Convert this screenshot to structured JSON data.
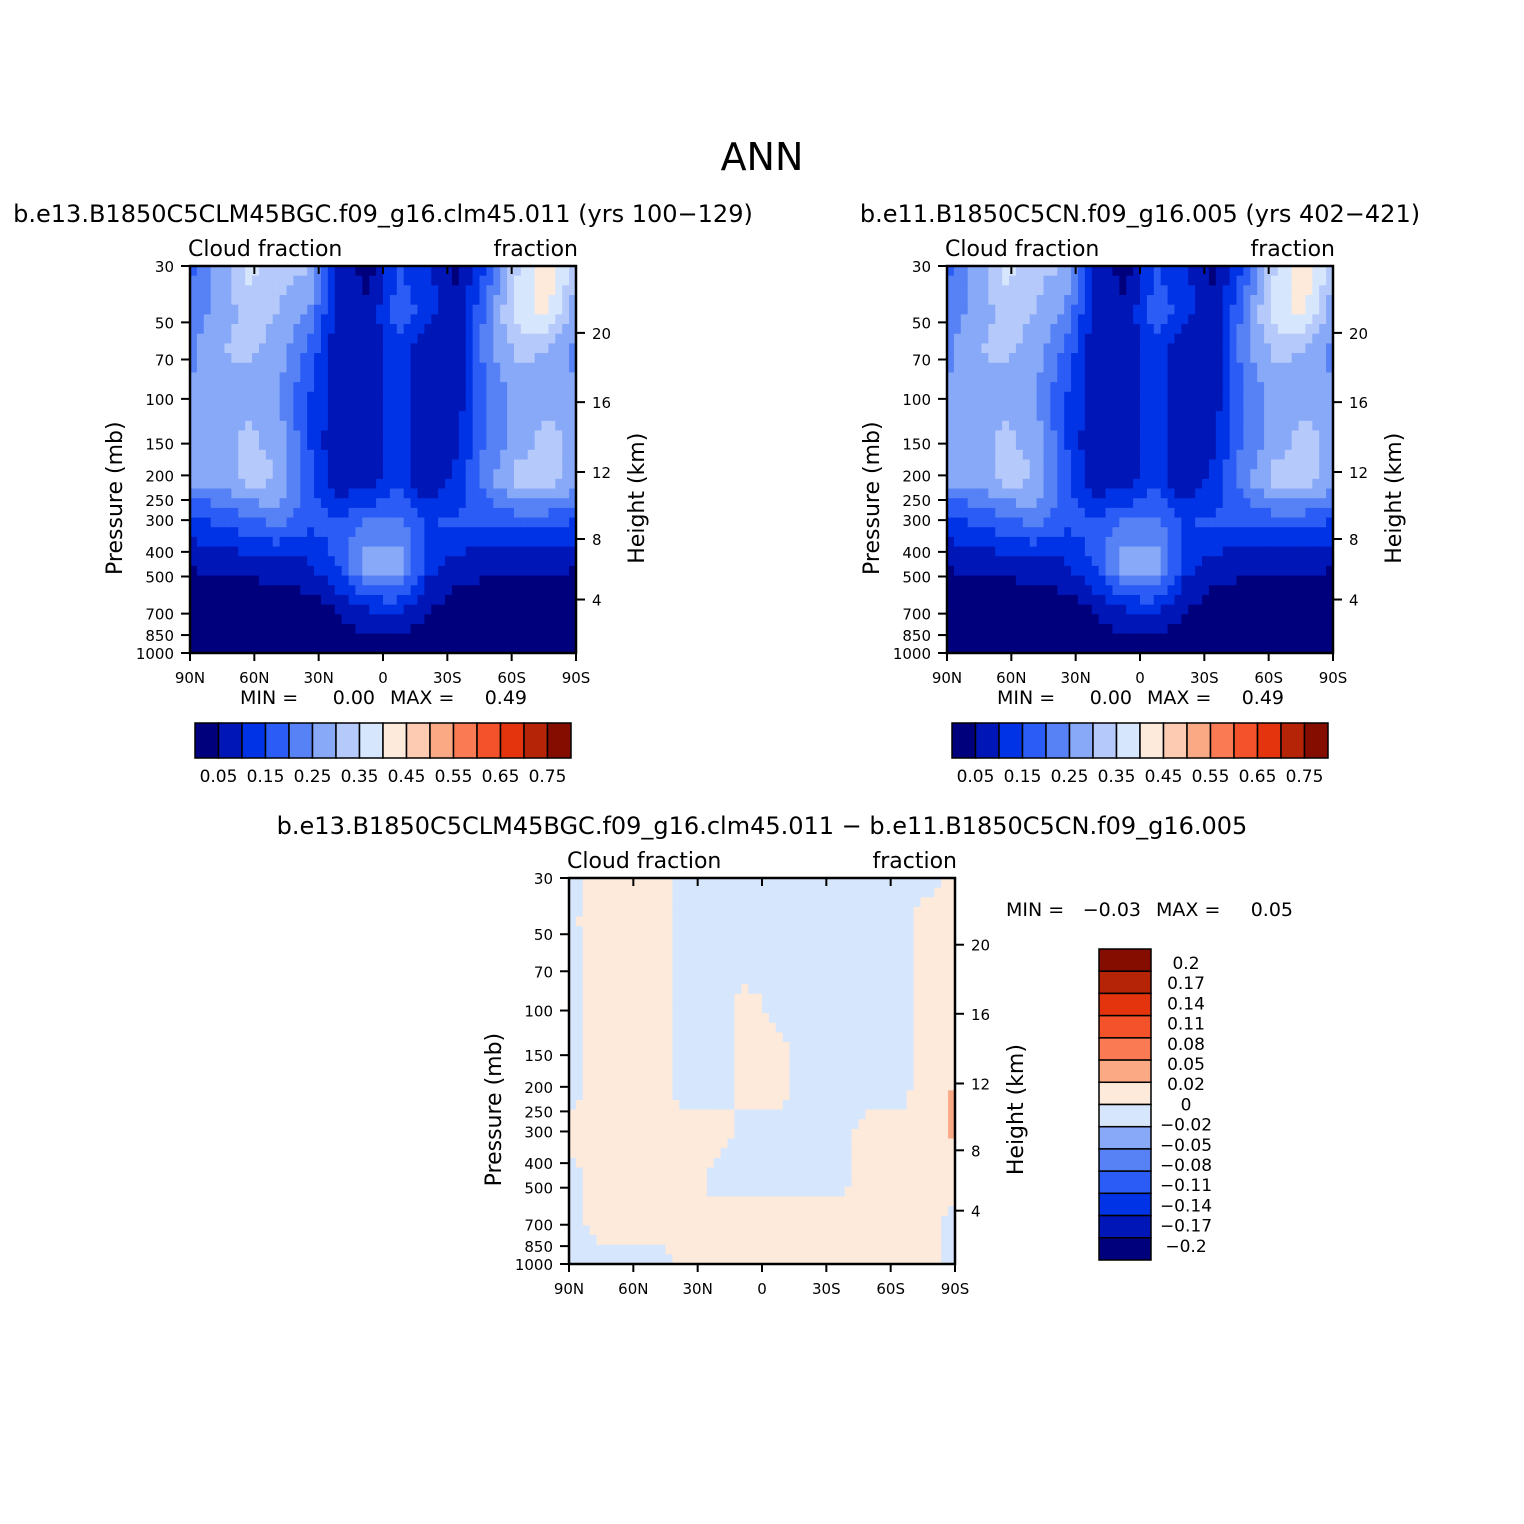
{
  "figure_title": "ANN",
  "colors": {
    "abs_scale": [
      "#00007d",
      "#0016b7",
      "#0033e6",
      "#2b5cf5",
      "#5782f5",
      "#88a9f8",
      "#b6c9fb",
      "#d6e6fd",
      "#feeadb",
      "#fccbb2",
      "#fba885",
      "#f97a53",
      "#f4522b",
      "#e3340e",
      "#b52407",
      "#850d00"
    ],
    "diff_scale": [
      "#00007d",
      "#0016b7",
      "#0033e6",
      "#2b5cf5",
      "#5782f5",
      "#88a9f8",
      "#d6e6fd",
      "#feeadb",
      "#fba885",
      "#f97a53",
      "#f4522b",
      "#e3340e",
      "#b52407",
      "#850d00"
    ]
  },
  "chart_data": [
    {
      "type": "heatmap",
      "title": "b.e13.B1850C5CLM45BGC.f09_g16.clm45.011 (yrs 100−129)",
      "left_label": "Cloud fraction",
      "right_label": "fraction",
      "ylabel": "Pressure (mb)",
      "y2label": "Height (km)",
      "x_ticks": [
        "90N",
        "60N",
        "30N",
        "0",
        "30S",
        "60S",
        "90S"
      ],
      "y_ticks": [
        "30",
        "50",
        "70",
        "100",
        "150",
        "200",
        "250",
        "300",
        "400",
        "500",
        "700",
        "850",
        "1000"
      ],
      "y_tick_values": [
        30,
        50,
        70,
        100,
        150,
        200,
        250,
        300,
        400,
        500,
        700,
        850,
        1000
      ],
      "y2_ticks": [
        "20",
        "16",
        "12",
        "8",
        "4"
      ],
      "ylim": [
        1000,
        30
      ],
      "min_label": "MIN =",
      "min_value": "0.00",
      "max_label": "MAX =",
      "max_value": "0.49",
      "colorbar_levels": [
        "0.05",
        "0.15",
        "0.25",
        "0.35",
        "0.45",
        "0.55",
        "0.65",
        "0.75"
      ],
      "field": [
        [
          0.18,
          0.27,
          0.37,
          0.31,
          0.31,
          0.1,
          0.02,
          0.15,
          0.11,
          0.04,
          0.14,
          0.34,
          0.45,
          0.33
        ],
        [
          0.22,
          0.26,
          0.33,
          0.3,
          0.25,
          0.07,
          0.06,
          0.18,
          0.13,
          0.05,
          0.22,
          0.38,
          0.41,
          0.27
        ],
        [
          0.24,
          0.3,
          0.31,
          0.27,
          0.19,
          0.06,
          0.06,
          0.13,
          0.06,
          0.06,
          0.23,
          0.31,
          0.3,
          0.23
        ],
        [
          0.25,
          0.28,
          0.28,
          0.25,
          0.15,
          0.07,
          0.08,
          0.13,
          0.05,
          0.07,
          0.2,
          0.27,
          0.28,
          0.26
        ],
        [
          0.27,
          0.28,
          0.31,
          0.28,
          0.15,
          0.05,
          0.06,
          0.14,
          0.05,
          0.09,
          0.21,
          0.27,
          0.32,
          0.28
        ],
        [
          0.26,
          0.26,
          0.32,
          0.3,
          0.17,
          0.06,
          0.07,
          0.14,
          0.05,
          0.12,
          0.23,
          0.32,
          0.32,
          0.28
        ],
        [
          0.13,
          0.15,
          0.18,
          0.21,
          0.16,
          0.17,
          0.21,
          0.21,
          0.15,
          0.16,
          0.15,
          0.16,
          0.16,
          0.14
        ],
        [
          0.05,
          0.06,
          0.06,
          0.07,
          0.09,
          0.16,
          0.29,
          0.3,
          0.12,
          0.07,
          0.06,
          0.06,
          0.06,
          0.05
        ],
        [
          0.02,
          0.02,
          0.02,
          0.02,
          0.02,
          0.05,
          0.1,
          0.11,
          0.05,
          0.02,
          0.02,
          0.02,
          0.02,
          0.02
        ],
        [
          0.01,
          0.01,
          0.01,
          0.01,
          0.01,
          0.01,
          0.01,
          0.01,
          0.01,
          0.01,
          0.01,
          0.01,
          0.01,
          0.01
        ]
      ]
    },
    {
      "type": "heatmap",
      "title": "b.e11.B1850C5CN.f09_g16.005 (yrs 402−421)",
      "left_label": "Cloud fraction",
      "right_label": "fraction",
      "ylabel": "Pressure (mb)",
      "y2label": "Height (km)",
      "x_ticks": [
        "90N",
        "60N",
        "30N",
        "0",
        "30S",
        "60S",
        "90S"
      ],
      "y_ticks": [
        "30",
        "50",
        "70",
        "100",
        "150",
        "200",
        "250",
        "300",
        "400",
        "500",
        "700",
        "850",
        "1000"
      ],
      "y_tick_values": [
        30,
        50,
        70,
        100,
        150,
        200,
        250,
        300,
        400,
        500,
        700,
        850,
        1000
      ],
      "y2_ticks": [
        "20",
        "16",
        "12",
        "8",
        "4"
      ],
      "ylim": [
        1000,
        30
      ],
      "min_label": "MIN =",
      "min_value": "0.00",
      "max_label": "MAX =",
      "max_value": "0.49",
      "colorbar_levels": [
        "0.05",
        "0.15",
        "0.25",
        "0.35",
        "0.45",
        "0.55",
        "0.65",
        "0.75"
      ],
      "field": [
        [
          0.18,
          0.27,
          0.37,
          0.31,
          0.3,
          0.1,
          0.02,
          0.15,
          0.11,
          0.04,
          0.14,
          0.34,
          0.45,
          0.33
        ],
        [
          0.22,
          0.26,
          0.33,
          0.3,
          0.25,
          0.07,
          0.06,
          0.18,
          0.13,
          0.05,
          0.22,
          0.38,
          0.41,
          0.27
        ],
        [
          0.24,
          0.3,
          0.31,
          0.27,
          0.19,
          0.06,
          0.06,
          0.13,
          0.06,
          0.06,
          0.23,
          0.31,
          0.3,
          0.23
        ],
        [
          0.25,
          0.28,
          0.28,
          0.25,
          0.15,
          0.07,
          0.08,
          0.13,
          0.05,
          0.07,
          0.2,
          0.27,
          0.28,
          0.26
        ],
        [
          0.27,
          0.28,
          0.31,
          0.28,
          0.15,
          0.05,
          0.06,
          0.14,
          0.05,
          0.09,
          0.21,
          0.27,
          0.32,
          0.28
        ],
        [
          0.26,
          0.26,
          0.32,
          0.3,
          0.17,
          0.06,
          0.07,
          0.14,
          0.05,
          0.12,
          0.23,
          0.32,
          0.32,
          0.28
        ],
        [
          0.13,
          0.15,
          0.18,
          0.21,
          0.16,
          0.17,
          0.21,
          0.21,
          0.15,
          0.16,
          0.15,
          0.16,
          0.16,
          0.14
        ],
        [
          0.05,
          0.06,
          0.06,
          0.07,
          0.09,
          0.16,
          0.29,
          0.3,
          0.12,
          0.07,
          0.06,
          0.06,
          0.06,
          0.05
        ],
        [
          0.02,
          0.02,
          0.02,
          0.02,
          0.02,
          0.05,
          0.1,
          0.11,
          0.05,
          0.02,
          0.02,
          0.02,
          0.02,
          0.02
        ],
        [
          0.01,
          0.01,
          0.01,
          0.01,
          0.01,
          0.01,
          0.01,
          0.01,
          0.01,
          0.01,
          0.01,
          0.01,
          0.01,
          0.01
        ]
      ]
    },
    {
      "type": "heatmap",
      "title": "b.e13.B1850C5CLM45BGC.f09_g16.clm45.011 − b.e11.B1850C5CN.f09_g16.005",
      "left_label": "Cloud fraction",
      "right_label": "fraction",
      "ylabel": "Pressure (mb)",
      "y2label": "Height (km)",
      "x_ticks": [
        "90N",
        "60N",
        "30N",
        "0",
        "30S",
        "60S",
        "90S"
      ],
      "y_ticks": [
        "30",
        "50",
        "70",
        "100",
        "150",
        "200",
        "250",
        "300",
        "400",
        "500",
        "700",
        "850",
        "1000"
      ],
      "y_tick_values": [
        30,
        50,
        70,
        100,
        150,
        200,
        250,
        300,
        400,
        500,
        700,
        850,
        1000
      ],
      "y2_ticks": [
        "20",
        "16",
        "12",
        "8",
        "4"
      ],
      "ylim": [
        1000,
        30
      ],
      "min_label": "MIN =",
      "min_value": "−0.03",
      "max_label": "MAX =",
      "max_value": "0.05",
      "colorbar_levels": [
        "0.2",
        "0.17",
        "0.14",
        "0.11",
        "0.08",
        "0.05",
        "0.02",
        "0",
        "−0.02",
        "−0.05",
        "−0.08",
        "−0.11",
        "−0.14",
        "−0.17",
        "−0.2"
      ],
      "field": [
        [
          -0.005,
          0.005,
          0.01,
          0.005,
          -0.005,
          -0.005,
          -0.015,
          -0.01,
          -0.005,
          -0.005,
          -0.02,
          -0.005,
          -0.005,
          0.005
        ],
        [
          -0.005,
          0.01,
          0.02,
          0.005,
          -0.005,
          -0.005,
          -0.005,
          -0.005,
          -0.005,
          -0.005,
          -0.005,
          -0.005,
          0.005,
          0.005
        ],
        [
          -0.005,
          0.005,
          0.005,
          0.005,
          -0.005,
          -0.005,
          -0.005,
          -0.005,
          -0.005,
          -0.005,
          -0.005,
          -0.005,
          0.005,
          0.005
        ],
        [
          -0.005,
          0.005,
          0.005,
          0.005,
          -0.005,
          -0.005,
          0.005,
          -0.005,
          -0.005,
          -0.005,
          -0.005,
          -0.005,
          0.005,
          0.005
        ],
        [
          -0.005,
          0.005,
          0.005,
          0.005,
          -0.005,
          -0.005,
          0.005,
          0.005,
          -0.005,
          -0.005,
          -0.005,
          -0.005,
          0.005,
          0.005
        ],
        [
          -0.005,
          0.005,
          0.005,
          0.005,
          -0.005,
          -0.005,
          0.005,
          0.005,
          -0.005,
          -0.005,
          -0.005,
          -0.005,
          0.005,
          0.025
        ],
        [
          0.005,
          0.005,
          0.005,
          0.005,
          0.005,
          0.005,
          -0.005,
          -0.005,
          -0.005,
          -0.005,
          0.005,
          0.005,
          0.005,
          0.025
        ],
        [
          -0.005,
          0.005,
          0.005,
          0.005,
          0.005,
          -0.005,
          -0.005,
          -0.005,
          -0.005,
          -0.005,
          0.005,
          0.005,
          0.005,
          0.005
        ],
        [
          -0.005,
          0.005,
          0.005,
          0.005,
          0.005,
          0.005,
          0.005,
          0.005,
          0.005,
          0.005,
          0.005,
          0.005,
          0.005,
          -0.005
        ],
        [
          -0.005,
          -0.005,
          -0.005,
          -0.005,
          0.005,
          0.005,
          0.005,
          0.005,
          0.005,
          0.005,
          0.005,
          0.005,
          0.005,
          -0.005
        ]
      ]
    }
  ]
}
